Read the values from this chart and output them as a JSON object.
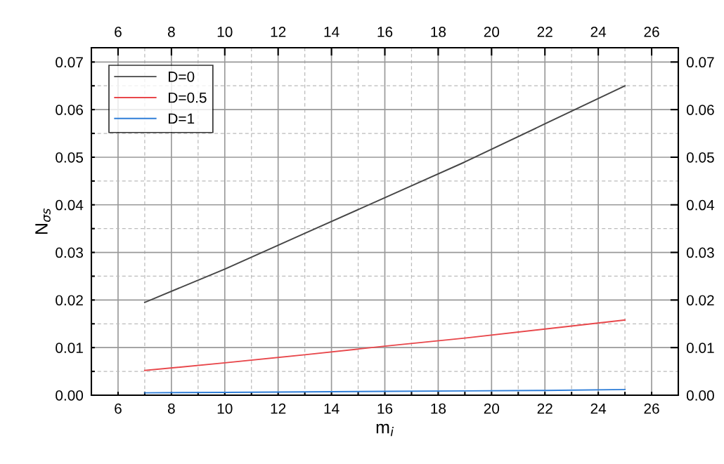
{
  "chart_data": {
    "type": "line",
    "xlabel": "m$_{i}$",
    "ylabel": "N$_{σs}$",
    "x": [
      7,
      10,
      13,
      16,
      19,
      22,
      25
    ],
    "series": [
      {
        "name": "D=0",
        "color": "#464646",
        "values": [
          0.0195,
          0.0265,
          0.034,
          0.0415,
          0.049,
          0.057,
          0.065
        ]
      },
      {
        "name": "D=0.5",
        "color": "#e8474b",
        "values": [
          0.0052,
          0.0068,
          0.0085,
          0.0103,
          0.012,
          0.0139,
          0.0158
        ]
      },
      {
        "name": "D=1",
        "color": "#2f7ed8",
        "values": [
          0.0005,
          0.0006,
          0.0007,
          0.0008,
          0.0009,
          0.001,
          0.0012
        ]
      }
    ],
    "xlim": [
      5,
      27
    ],
    "ylim": [
      0,
      0.073
    ],
    "x2lim": [
      5,
      27
    ],
    "y2lim": [
      0,
      0.073
    ],
    "xticks": [
      6,
      {
        "value": 7,
        "label": null
      },
      8,
      {
        "value": 9,
        "label": null
      },
      10,
      {
        "value": 11,
        "label": null
      },
      12,
      {
        "value": 13,
        "label": null
      },
      14,
      {
        "value": 15,
        "label": null
      },
      16,
      {
        "value": 17,
        "label": null
      },
      18,
      {
        "value": 19,
        "label": null
      },
      20,
      {
        "value": 21,
        "label": null
      },
      22,
      {
        "value": 23,
        "label": null
      },
      24,
      {
        "value": 25,
        "label": null
      },
      26
    ],
    "x2ticks": [
      6,
      8,
      10,
      12,
      14,
      16,
      18,
      20,
      22,
      24,
      26
    ],
    "yticks": [
      {
        "value": 0,
        "label": "0.00"
      },
      {
        "value": 0.005,
        "label": null
      },
      {
        "value": 0.01,
        "label": "0.01"
      },
      {
        "value": 0.015,
        "label": null
      },
      {
        "value": 0.02,
        "label": "0.02"
      },
      {
        "value": 0.025,
        "label": null
      },
      {
        "value": 0.03,
        "label": "0.03"
      },
      {
        "value": 0.035,
        "label": null
      },
      {
        "value": 0.04,
        "label": "0.04"
      },
      {
        "value": 0.045,
        "label": null
      },
      {
        "value": 0.05,
        "label": "0.05"
      },
      {
        "value": 0.055,
        "label": null
      },
      {
        "value": 0.06,
        "label": "0.06"
      },
      {
        "value": 0.065,
        "label": null
      },
      {
        "value": 0.07,
        "label": "0.07"
      }
    ],
    "y2ticks": [
      {
        "value": 0,
        "label": "0.00"
      },
      {
        "value": 0.01,
        "label": "0.01"
      },
      {
        "value": 0.02,
        "label": "0.02"
      },
      {
        "value": 0.03,
        "label": "0.03"
      },
      {
        "value": 0.04,
        "label": "0.04"
      },
      {
        "value": 0.05,
        "label": "0.05"
      },
      {
        "value": 0.06,
        "label": "0.06"
      },
      {
        "value": 0.07,
        "label": "0.07"
      }
    ],
    "grid": true,
    "legend": "top left",
    "marker": "none",
    "line_style": "solid"
  }
}
